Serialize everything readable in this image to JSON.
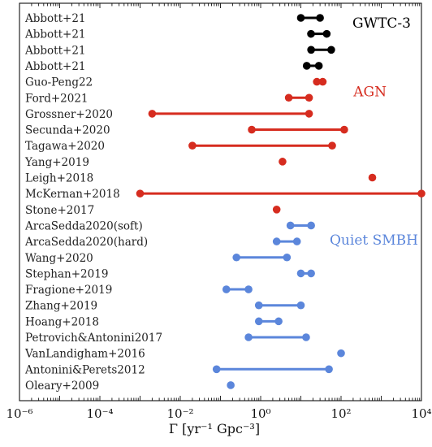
{
  "chart_data": {
    "type": "scatter",
    "title": "",
    "xlabel": "Γ [yr⁻¹ Gpc⁻³]",
    "ylabel": "",
    "xscale": "log",
    "xlim": [
      1e-06,
      10000.0
    ],
    "grid": false,
    "legend": "none",
    "x_ticks": [
      {
        "label": "10⁻⁶",
        "value": 1e-06
      },
      {
        "label": "10⁻⁴",
        "value": 0.0001
      },
      {
        "label": "10⁻²",
        "value": 0.01
      },
      {
        "label": "10⁰",
        "value": 1
      },
      {
        "label": "10²",
        "value": 100
      },
      {
        "label": "10⁴",
        "value": 10000
      }
    ],
    "groups": [
      {
        "name": "GWTC-3",
        "color": "#000000"
      },
      {
        "name": "AGN",
        "color": "#d62c1f"
      },
      {
        "name": "Quiet SMBH",
        "color": "#5b86db"
      }
    ],
    "entries": [
      {
        "label": "Abbott+21",
        "group": 0,
        "low": 10,
        "high": 30
      },
      {
        "label": "Abbott+21",
        "group": 0,
        "low": 17.9,
        "high": 44
      },
      {
        "label": "Abbott+21",
        "group": 0,
        "low": 18,
        "high": 57
      },
      {
        "label": "Abbott+21",
        "group": 0,
        "low": 14,
        "high": 28
      },
      {
        "label": "Guo-Peng22",
        "group": 1,
        "low": 25,
        "high": 35
      },
      {
        "label": "Ford+2021",
        "group": 1,
        "low": 5,
        "high": 16
      },
      {
        "label": "Grossner+2020",
        "group": 1,
        "low": 0.002,
        "high": 16
      },
      {
        "label": "Secunda+2020",
        "group": 1,
        "low": 0.6,
        "high": 120
      },
      {
        "label": "Tagawa+2020",
        "group": 1,
        "low": 0.02,
        "high": 60
      },
      {
        "label": "Yang+2019",
        "group": 1,
        "low": 3.5,
        "high": 3.5
      },
      {
        "label": "Leigh+2018",
        "group": 1,
        "low": 600,
        "high": 600
      },
      {
        "label": "McKernan+2018",
        "group": 1,
        "low": 0.001,
        "high": 10000
      },
      {
        "label": "Stone+2017",
        "group": 1,
        "low": 2.5,
        "high": 2.5
      },
      {
        "label": "ArcaSedda2020(soft)",
        "group": 2,
        "low": 5.5,
        "high": 18
      },
      {
        "label": "ArcaSedda2020(hard)",
        "group": 2,
        "low": 2.5,
        "high": 8
      },
      {
        "label": "Wang+2020",
        "group": 2,
        "low": 0.25,
        "high": 4.5
      },
      {
        "label": "Stephan+2019",
        "group": 2,
        "low": 10,
        "high": 18
      },
      {
        "label": "Fragione+2019",
        "group": 2,
        "low": 0.14,
        "high": 0.5
      },
      {
        "label": "Zhang+2019",
        "group": 2,
        "low": 0.9,
        "high": 10
      },
      {
        "label": "Hoang+2018",
        "group": 2,
        "low": 0.9,
        "high": 2.8
      },
      {
        "label": "Petrovich&Antonini2017",
        "group": 2,
        "low": 0.5,
        "high": 13.5
      },
      {
        "label": "VanLandigham+2016",
        "group": 2,
        "low": 100,
        "high": 100
      },
      {
        "label": "Antonini&Perets2012",
        "group": 2,
        "low": 0.08,
        "high": 50
      },
      {
        "label": "Oleary+2009",
        "group": 2,
        "low": 0.18,
        "high": 0.18
      }
    ]
  }
}
